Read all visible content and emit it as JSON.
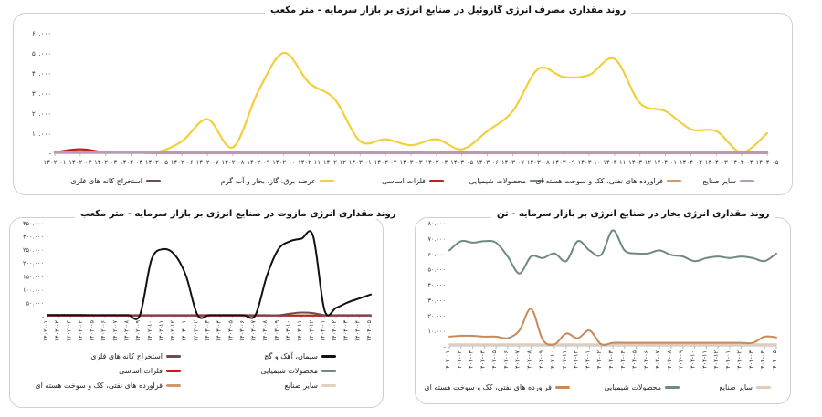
{
  "chart_data": [
    {
      "id": "gasoil",
      "type": "line",
      "title": "روند مقداری مصرف انرژی گازوئیل در صنایع انرژی بر بازار سرمایه - متر مکعب",
      "ylim": [
        0,
        60
      ],
      "yticks": [
        "-",
        "۱۰.۰۰۰",
        "۲۰.۰۰۰",
        "۳۰.۰۰۰",
        "۴۰.۰۰۰",
        "۵۰.۰۰۰",
        "۶۰.۰۰۰"
      ],
      "ytick_values": [
        0,
        10,
        20,
        30,
        40,
        50,
        60
      ],
      "categories": [
        "۱۴۰۲-۰۱",
        "۱۴۰۲-۰۲",
        "۱۴۰۲-۰۳",
        "۱۴۰۲-۰۴",
        "۱۴۰۲-۰۵",
        "۱۴۰۲-۰۶",
        "۱۴۰۲-۰۷",
        "۱۴۰۲-۰۸",
        "۱۴۰۲-۰۹",
        "۱۴۰۲-۱۰",
        "۱۴۰۲-۱۱",
        "۱۴۰۲-۱۲",
        "۱۴۰۳-۰۱",
        "۱۴۰۳-۰۲",
        "۱۴۰۳-۰۳",
        "۱۴۰۳-۰۴",
        "۱۴۰۳-۰۵",
        "۱۴۰۳-۰۶",
        "۱۴۰۳-۰۷",
        "۱۴۰۳-۰۸",
        "۱۴۰۳-۰۹",
        "۱۴۰۳-۱۰",
        "۱۴۰۳-۱۱",
        "۱۴۰۳-۱۲",
        "۱۴۰۴-۰۱",
        "۱۴۰۴-۰۲",
        "۱۴۰۴-۰۳",
        "۱۴۰۴-۰۴",
        "۱۴۰۴-۰۵"
      ],
      "series": [
        {
          "name": "استخراج کانه های فلزی",
          "color": "#6e4c4c",
          "values": [
            0.5,
            0.8,
            0.7,
            0.5,
            0.4,
            0.3,
            0.3,
            0.3,
            0.3,
            0.3,
            0.3,
            0.3,
            0.3,
            0.3,
            0.3,
            0.3,
            0.3,
            0.3,
            0.3,
            0.3,
            0.3,
            0.3,
            0.3,
            0.3,
            0.3,
            0.3,
            0.3,
            0.3,
            0.6
          ]
        },
        {
          "name": "عرضه برق، گاز، بخار و آب گرم",
          "color": "#f2cf3c",
          "values": [
            0.5,
            0.5,
            0.5,
            0.5,
            0.5,
            6,
            17,
            3,
            31,
            50,
            35,
            27,
            6,
            7,
            4,
            7,
            2,
            11,
            21,
            42,
            38,
            39,
            47,
            25,
            21,
            12,
            11,
            0.5,
            10
          ]
        },
        {
          "name": "فلزات اساسی",
          "color": "#c21f1f",
          "values": [
            0.5,
            2,
            0.5,
            0.3,
            0.2,
            0.2,
            0.2,
            0.2,
            0.2,
            0.2,
            0.2,
            0.2,
            0.2,
            0.2,
            0.2,
            0.2,
            0.2,
            0.2,
            0.2,
            0.2,
            0.2,
            0.2,
            0.2,
            0.2,
            0.2,
            0.2,
            0.2,
            0.2,
            0.2
          ]
        },
        {
          "name": "محصولات شیمیایی",
          "color": "#6f8a7e",
          "values": [
            0.3,
            0.3,
            0.3,
            0.3,
            0.3,
            0.3,
            0.3,
            0.3,
            0.3,
            0.3,
            0.3,
            0.3,
            0.3,
            0.3,
            0.3,
            0.3,
            0.3,
            0.3,
            0.3,
            0.4,
            0.4,
            0.4,
            0.4,
            0.4,
            0.4,
            0.4,
            0.4,
            0.4,
            0.4
          ]
        },
        {
          "name": "فراورده های نفتی، کک و سوخت هسته ای",
          "color": "#d09a6c",
          "values": [
            0.4,
            0.4,
            0.4,
            0.4,
            0.4,
            0.4,
            0.4,
            0.4,
            0.4,
            0.4,
            0.4,
            0.4,
            0.4,
            0.4,
            0.4,
            0.4,
            0.4,
            0.4,
            0.4,
            0.4,
            0.4,
            0.4,
            0.4,
            0.4,
            0.4,
            0.4,
            0.4,
            0.4,
            0.4
          ]
        },
        {
          "name": "سایر صنایع",
          "color": "#b79ab8",
          "values": [
            0.2,
            0.2,
            0.2,
            0.2,
            0.2,
            0.2,
            0.2,
            0.2,
            0.2,
            0.2,
            0.2,
            0.2,
            0.2,
            0.2,
            0.2,
            0.2,
            0.2,
            0.2,
            0.2,
            0.2,
            0.2,
            0.2,
            0.2,
            0.2,
            0.2,
            0.2,
            0.2,
            0.2,
            0.2
          ]
        }
      ]
    },
    {
      "id": "mazut",
      "type": "line",
      "title": "روند مقداری انرژی مازوت در صنایع انرژی بر بازار سرمایه - متر مکعب",
      "ylim": [
        0,
        350
      ],
      "yticks": [
        "-",
        "۵۰.۰۰۰",
        "۱۰۰.۰۰۰",
        "۱۵۰.۰۰۰",
        "۲۰۰.۰۰۰",
        "۲۵۰.۰۰۰",
        "۳۰۰.۰۰۰",
        "۳۵۰.۰۰۰"
      ],
      "ytick_values": [
        0,
        50,
        100,
        150,
        200,
        250,
        300,
        350
      ],
      "categories": [
        "۱۴۰۲-۰۱",
        "۱۴۰۲-۰۲",
        "۱۴۰۲-۰۳",
        "۱۴۰۲-۰۴",
        "۱۴۰۲-۰۵",
        "۱۴۰۲-۰۶",
        "۱۴۰۲-۰۷",
        "۱۴۰۲-۰۸",
        "۱۴۰۲-۰۹",
        "۱۴۰۲-۱۰",
        "۱۴۰۲-۱۱",
        "۱۴۰۲-۱۲",
        "۱۴۰۳-۰۱",
        "۱۴۰۳-۰۲",
        "۱۴۰۳-۰۳",
        "۱۴۰۳-۰۴",
        "۱۴۰۳-۰۵",
        "۱۴۰۳-۰۶",
        "۱۴۰۳-۰۷",
        "۱۴۰۳-۰۸",
        "۱۴۰۳-۰۹",
        "۱۴۰۳-۱۰",
        "۱۴۰۳-۱۱",
        "۱۴۰۳-۱۲",
        "۱۴۰۴-۰۱",
        "۱۴۰۴-۰۲",
        "۱۴۰۴-۰۳",
        "۱۴۰۴-۰۴",
        "۱۴۰۴-۰۵"
      ],
      "series": [
        {
          "name": "استخراج کانه های فلزی",
          "color": "#6e4c4c",
          "values": [
            3,
            3,
            3,
            3,
            2,
            2,
            2,
            2,
            2,
            2,
            2,
            2,
            2,
            2,
            2,
            2,
            2,
            2,
            2,
            2,
            2,
            8,
            12,
            10,
            2,
            2,
            2,
            2,
            2
          ]
        },
        {
          "name": "سیمان، آهک و گچ",
          "color": "#111111",
          "values": [
            2,
            2,
            2,
            2,
            2,
            2,
            2,
            2,
            2,
            210,
            250,
            230,
            150,
            2,
            2,
            2,
            2,
            2,
            2,
            150,
            250,
            280,
            290,
            300,
            20,
            30,
            50,
            65,
            80
          ]
        },
        {
          "name": "فلزات اساسی",
          "color": "#c21f1f",
          "values": [
            1,
            1,
            1,
            1,
            1,
            1,
            1,
            1,
            1,
            1,
            1,
            1,
            1,
            1,
            1,
            1,
            1,
            1,
            1,
            1,
            1,
            1,
            1,
            1,
            1,
            1,
            1,
            1,
            1
          ]
        },
        {
          "name": "محصولات شیمیایی",
          "color": "#6f8a7e",
          "values": [
            1,
            1,
            1,
            1,
            1,
            1,
            1,
            1,
            1,
            1,
            1,
            1,
            1,
            1,
            1,
            1,
            1,
            1,
            1,
            1,
            1,
            1,
            1,
            1,
            1,
            1,
            1,
            1,
            1
          ]
        },
        {
          "name": "فراورده های نفتی، کک و سوخت هسته ای",
          "color": "#d09a6c",
          "values": [
            1,
            1,
            1,
            1,
            1,
            1,
            1,
            1,
            1,
            1,
            1,
            1,
            1,
            1,
            1,
            1,
            1,
            1,
            1,
            1,
            1,
            1,
            1,
            1,
            1,
            1,
            1,
            1,
            1
          ]
        },
        {
          "name": "سایر صنایع",
          "color": "#e3d2c0",
          "values": [
            1,
            1,
            1,
            1,
            1,
            1,
            1,
            1,
            1,
            1,
            1,
            1,
            1,
            1,
            1,
            1,
            1,
            1,
            1,
            1,
            1,
            1,
            1,
            1,
            1,
            1,
            1,
            1,
            1
          ]
        }
      ]
    },
    {
      "id": "steam",
      "type": "line",
      "title": "روند مقداری انرژی بخار در صنایع انرژی بر بازار سرمایه - تن",
      "ylim": [
        0,
        80
      ],
      "yticks": [
        "-",
        "۱۰.۰۰۰",
        "۲۰.۰۰۰",
        "۳۰.۰۰۰",
        "۴۰.۰۰۰",
        "۵۰.۰۰۰",
        "۶۰.۰۰۰",
        "۷۰.۰۰۰",
        "۸۰.۰۰۰"
      ],
      "ytick_values": [
        0,
        10,
        20,
        30,
        40,
        50,
        60,
        70,
        80
      ],
      "categories": [
        "۱۴۰۲-۰۱",
        "۱۴۰۲-۰۲",
        "۱۴۰۲-۰۳",
        "۱۴۰۲-۰۴",
        "۱۴۰۲-۰۵",
        "۱۴۰۲-۰۶",
        "۱۴۰۲-۰۷",
        "۱۴۰۲-۰۸",
        "۱۴۰۲-۰۹",
        "۱۴۰۲-۱۰",
        "۱۴۰۲-۱۱",
        "۱۴۰۲-۱۲",
        "۱۴۰۳-۰۱",
        "۱۴۰۳-۰۲",
        "۱۴۰۳-۰۳",
        "۱۴۰۳-۰۴",
        "۱۴۰۳-۰۵",
        "۱۴۰۳-۰۶",
        "۱۴۰۳-۰۷",
        "۱۴۰۳-۰۸",
        "۱۴۰۳-۰۹",
        "۱۴۰۳-۱۰",
        "۱۴۰۳-۱۱",
        "۱۴۰۳-۱۲",
        "۱۴۰۴-۰۱",
        "۱۴۰۴-۰۲",
        "۱۴۰۴-۰۳",
        "۱۴۰۴-۰۴",
        "۱۴۰۴-۰۵"
      ],
      "series": [
        {
          "name": "فراورده های نفتی، کک و سوخت هسته ای",
          "color": "#c98a5a",
          "values": [
            6,
            6.5,
            6.5,
            6,
            6,
            5,
            10,
            24,
            4,
            1,
            8,
            5,
            10,
            1,
            2,
            2,
            2,
            2,
            2,
            2,
            2,
            2,
            2,
            2,
            2,
            2,
            2,
            6,
            5.5
          ]
        },
        {
          "name": "محصولات شیمیایی",
          "color": "#6f8a7e",
          "values": [
            62,
            68,
            67,
            68,
            67,
            58,
            47,
            58,
            57,
            60,
            55,
            68,
            62,
            59,
            75,
            62,
            60,
            60,
            62,
            59,
            58,
            55,
            57,
            58,
            57,
            58,
            57,
            55,
            60
          ]
        },
        {
          "name": "سایر صنایع",
          "color": "#e3cbb5",
          "values": [
            1,
            1,
            1,
            1,
            1,
            1,
            1,
            1,
            1,
            1,
            1,
            1,
            1,
            1,
            1,
            1,
            1,
            1,
            1,
            1,
            1,
            1,
            1,
            1,
            1,
            1,
            1,
            1,
            1
          ]
        }
      ]
    }
  ]
}
